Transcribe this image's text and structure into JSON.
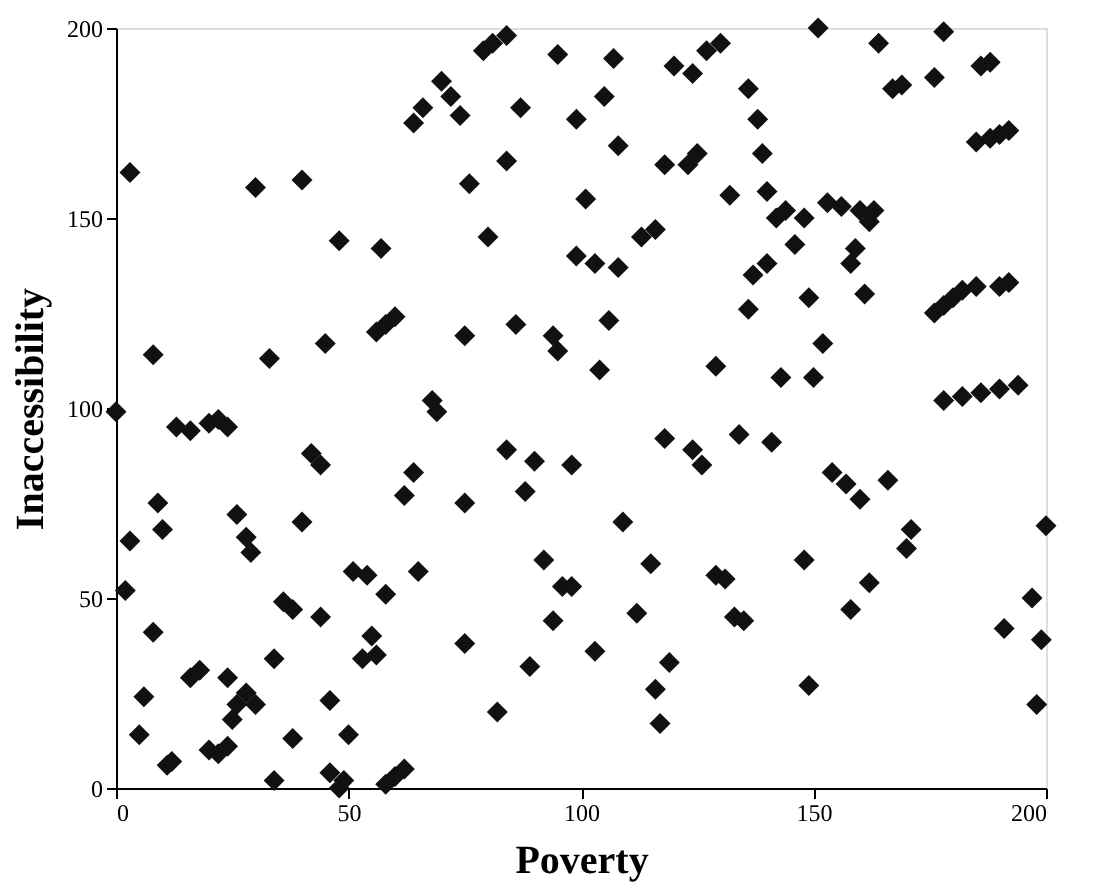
{
  "chart_data": {
    "type": "scatter",
    "xlabel": "Poverty",
    "ylabel": "Inaccessibility",
    "xlim": [
      0,
      200
    ],
    "ylim": [
      0,
      200
    ],
    "xticks": [
      0,
      50,
      100,
      150,
      200
    ],
    "yticks": [
      0,
      50,
      100,
      150,
      200
    ],
    "marker": "diamond",
    "series": [
      {
        "color": "#111111",
        "x": [
          3,
          8,
          30,
          40,
          33,
          45,
          48,
          56,
          58,
          60,
          57,
          64,
          66,
          68,
          69,
          70,
          72,
          74,
          76,
          75,
          80,
          79,
          81,
          84,
          84,
          87,
          86,
          95,
          94,
          95,
          99,
          101,
          103,
          99,
          105,
          107,
          108,
          106,
          108,
          104,
          113,
          116,
          118,
          120,
          123,
          125,
          124,
          127,
          130,
          129,
          132,
          136,
          138,
          139,
          136,
          140,
          142,
          144,
          137,
          140,
          146,
          148,
          151,
          149,
          143,
          152,
          150,
          153,
          156,
          158,
          159,
          160,
          162,
          163,
          161,
          164,
          167,
          169,
          176,
          178,
          176,
          178,
          180,
          182,
          185,
          186,
          188,
          185,
          188,
          190,
          192,
          190,
          192,
          178,
          182,
          186,
          190,
          194,
          0,
          2,
          3,
          5,
          6,
          8,
          9,
          10,
          11,
          12,
          13,
          16,
          16,
          18,
          20,
          22,
          24,
          20,
          22,
          24,
          24,
          25,
          26,
          28,
          26,
          28,
          29,
          30,
          34,
          36,
          38,
          34,
          38,
          40,
          42,
          44,
          44,
          46,
          46,
          48,
          49,
          50,
          51,
          53,
          54,
          55,
          56,
          58,
          60,
          62,
          58,
          62,
          64,
          65,
          75,
          75,
          82,
          84,
          88,
          90,
          89,
          92,
          94,
          96,
          98,
          98,
          118,
          124,
          126,
          134,
          141,
          109,
          115,
          129,
          131,
          148,
          154,
          157,
          160,
          166,
          171,
          170,
          162,
          158,
          200,
          197,
          191,
          199,
          198,
          112,
          103,
          119,
          116,
          117,
          133,
          135,
          149
        ],
        "values": [
          162,
          114,
          158,
          160,
          113,
          117,
          144,
          120,
          122,
          124,
          142,
          175,
          179,
          102,
          99,
          186,
          182,
          177,
          159,
          119,
          145,
          194,
          196,
          198,
          165,
          179,
          122,
          193,
          119,
          115,
          140,
          155,
          138,
          176,
          182,
          192,
          169,
          123,
          137,
          110,
          145,
          147,
          164,
          190,
          164,
          167,
          188,
          194,
          196,
          111,
          156,
          184,
          176,
          167,
          126,
          157,
          150,
          152,
          135,
          138,
          143,
          150,
          200,
          129,
          108,
          117,
          108,
          154,
          153,
          138,
          142,
          152,
          149,
          152,
          130,
          196,
          184,
          185,
          187,
          199,
          125,
          127,
          129,
          131,
          132,
          190,
          191,
          170,
          171,
          172,
          173,
          132,
          133,
          102,
          103,
          104,
          105,
          106,
          99,
          52,
          65,
          14,
          24,
          41,
          75,
          68,
          6,
          7,
          95,
          94,
          29,
          31,
          10,
          9,
          11,
          96,
          97,
          95,
          29,
          18,
          22,
          25,
          72,
          66,
          62,
          22,
          34,
          49,
          47,
          2,
          13,
          70,
          88,
          85,
          45,
          4,
          23,
          0,
          2,
          14,
          57,
          34,
          56,
          40,
          35,
          1,
          3,
          5,
          51,
          77,
          83,
          57,
          38,
          75,
          20,
          89,
          78,
          86,
          32,
          60,
          44,
          53,
          53,
          85,
          92,
          89,
          85,
          93,
          91,
          70,
          59,
          56,
          55,
          60,
          83,
          80,
          76,
          81,
          68,
          63,
          54,
          47,
          69,
          50,
          42,
          39,
          22,
          46,
          36,
          33,
          26,
          17,
          45,
          44,
          27
        ]
      }
    ]
  }
}
